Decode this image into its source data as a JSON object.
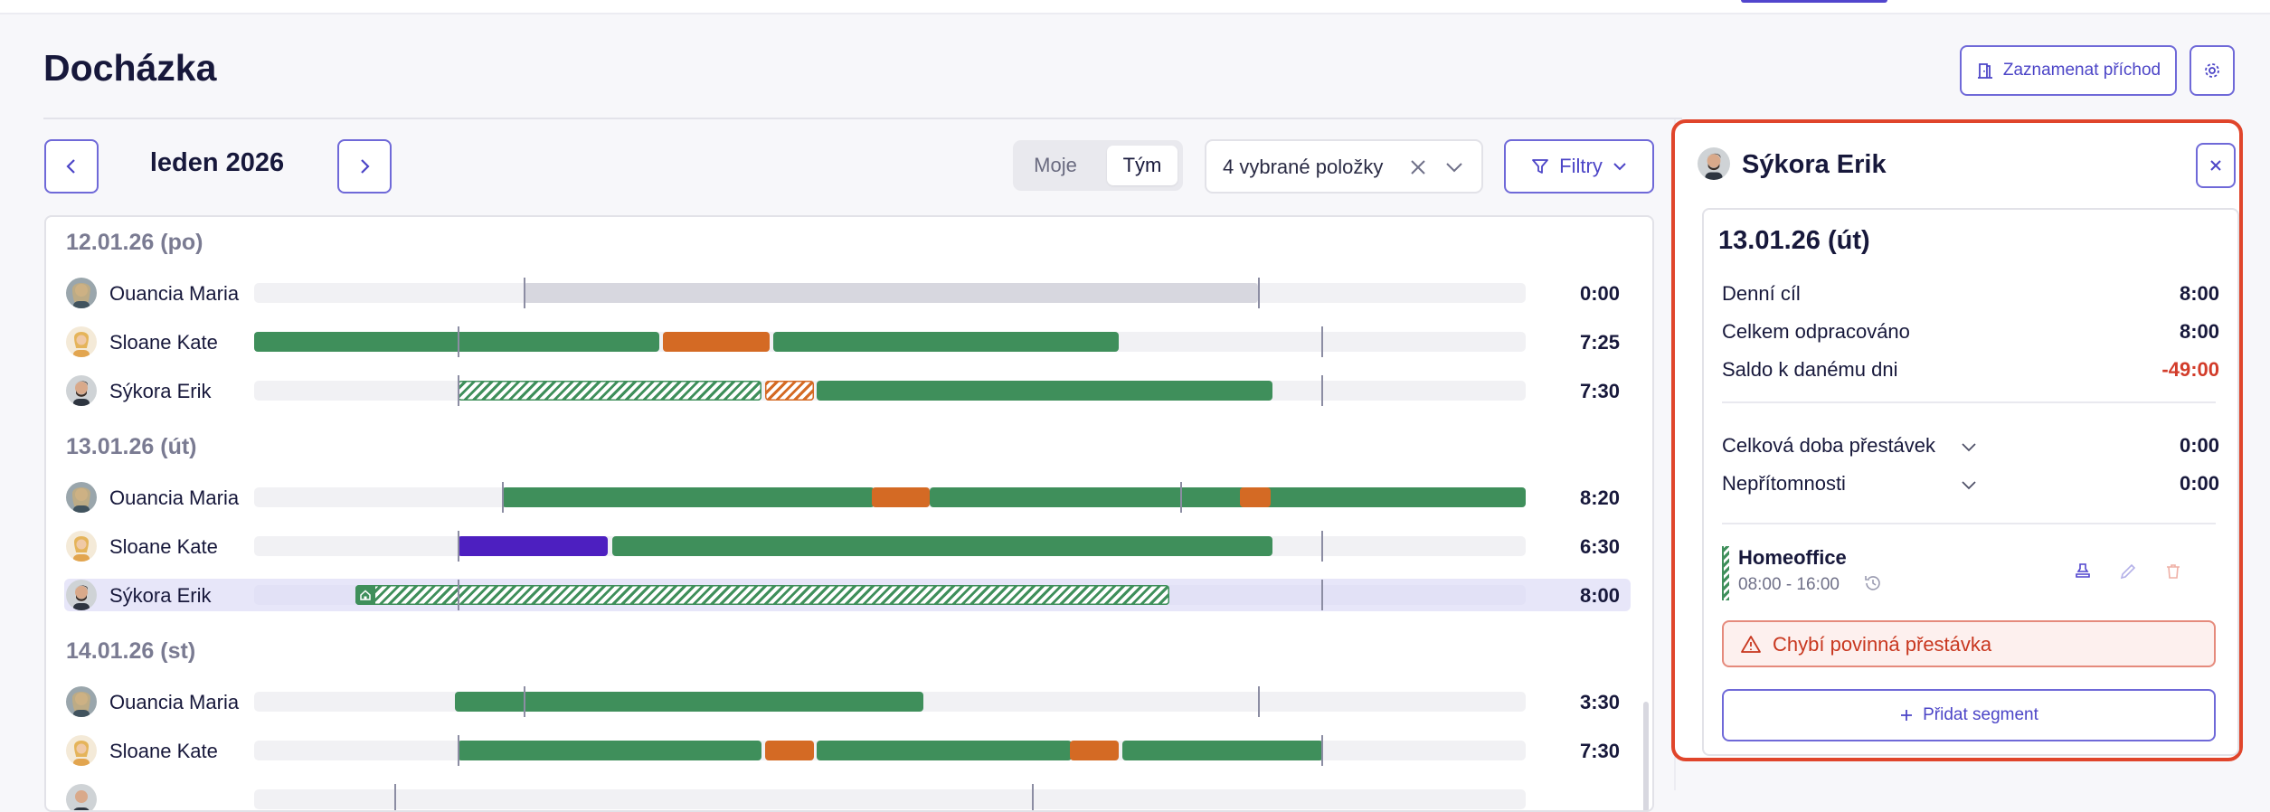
{
  "page": {
    "title": "Docházka"
  },
  "header": {
    "record_label": "Zaznamenat příchod"
  },
  "toolbar": {
    "month_label": "leden 2026",
    "view_toggle": {
      "options": [
        "Moje",
        "Tým"
      ],
      "selected": "Tým"
    },
    "select_value": "4 vybrané položky",
    "filter_label": "Filtry"
  },
  "timeline": {
    "days": [
      {
        "label": "12.01.26 (po)",
        "rows": [
          {
            "name": "Ouancia Maria",
            "total": "0:00"
          },
          {
            "name": "Sloane Kate",
            "total": "7:25"
          },
          {
            "name": "Sýkora Erik",
            "total": "7:30"
          }
        ]
      },
      {
        "label": "13.01.26 (út)",
        "rows": [
          {
            "name": "Ouancia Maria",
            "total": "8:20"
          },
          {
            "name": "Sloane Kate",
            "total": "6:30"
          },
          {
            "name": "Sýkora Erik",
            "total": "8:00",
            "selected": true
          }
        ]
      },
      {
        "label": "14.01.26 (st)",
        "rows": [
          {
            "name": "Ouancia Maria",
            "total": "3:30"
          },
          {
            "name": "Sloane Kate",
            "total": "7:30"
          }
        ]
      }
    ],
    "colors": {
      "work": "#3f8f5b",
      "break": "#d46a24",
      "other": "#4d1fc0",
      "planned": "#d7d7df"
    }
  },
  "detail": {
    "name": "Sýkora Erik",
    "date": "13.01.26 (út)",
    "stats": [
      {
        "label": "Denní cíl",
        "value": "8:00"
      },
      {
        "label": "Celkem odpracováno",
        "value": "8:00"
      },
      {
        "label": "Saldo k danému dni",
        "value": "-49:00"
      }
    ],
    "expandables": [
      {
        "label": "Celková doba přestávek",
        "value": "0:00"
      },
      {
        "label": "Nepřítomnosti",
        "value": "0:00"
      }
    ],
    "segment": {
      "title": "Homeoffice",
      "time": "08:00 - 16:00"
    },
    "alert": "Chybí povinná přestávka",
    "add_label": "Přidat segment"
  },
  "accent_color": "#5145cd",
  "highlight_color": "#e0452b"
}
